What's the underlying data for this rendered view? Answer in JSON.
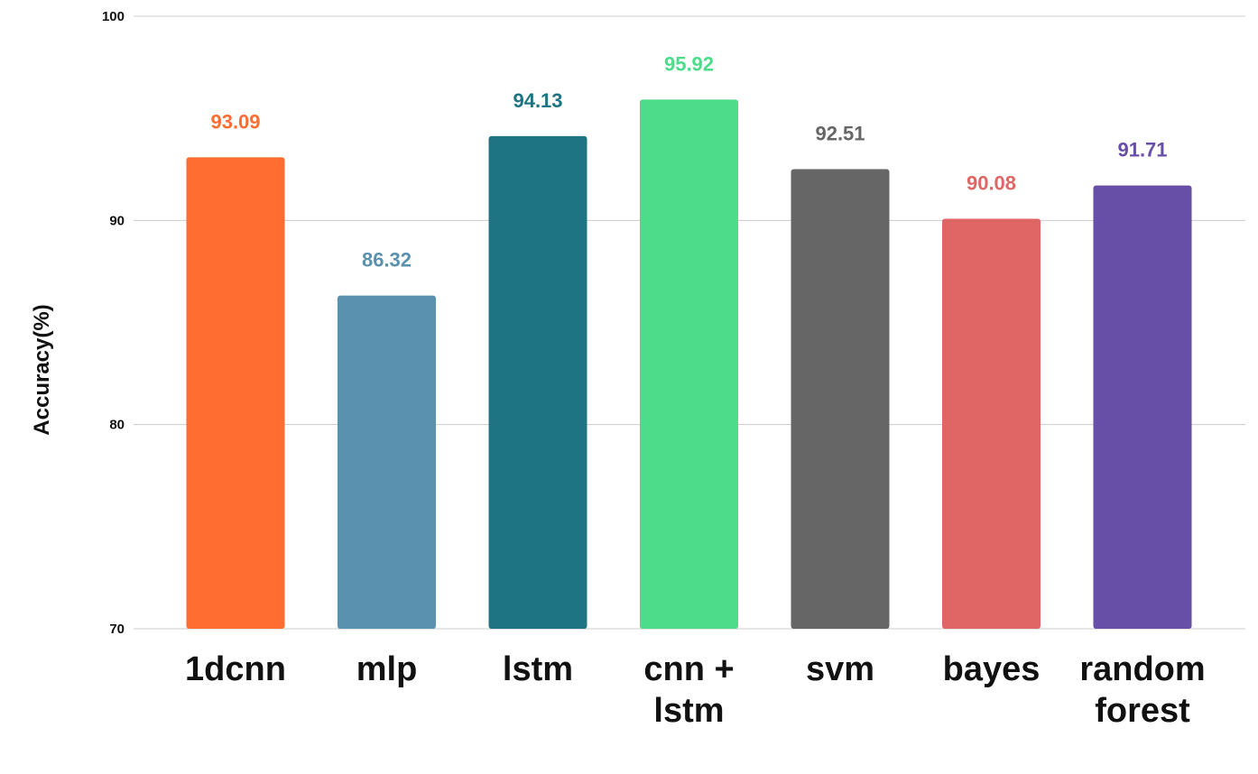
{
  "chart_data": {
    "type": "bar",
    "title": "",
    "xlabel": "",
    "ylabel": "Accuracy(%)",
    "ylim": [
      70,
      100
    ],
    "yticks": [
      "70",
      "80",
      "90",
      "100"
    ],
    "grid": true,
    "legend": "none",
    "categories": [
      [
        "1dcnn"
      ],
      [
        "mlp"
      ],
      [
        "lstm"
      ],
      [
        "cnn +",
        "lstm"
      ],
      [
        "svm"
      ],
      [
        "bayes"
      ],
      [
        "random",
        "forest"
      ]
    ],
    "values": [
      93.09,
      86.32,
      94.13,
      95.92,
      92.51,
      90.08,
      91.71
    ],
    "value_labels": [
      "93.09",
      "86.32",
      "94.13",
      "95.92",
      "92.51",
      "90.08",
      "91.71"
    ],
    "colors": [
      "#ff6d31",
      "#5a91ae",
      "#1e7483",
      "#4ddc8a",
      "#666666",
      "#e06666",
      "#674ea7"
    ]
  }
}
